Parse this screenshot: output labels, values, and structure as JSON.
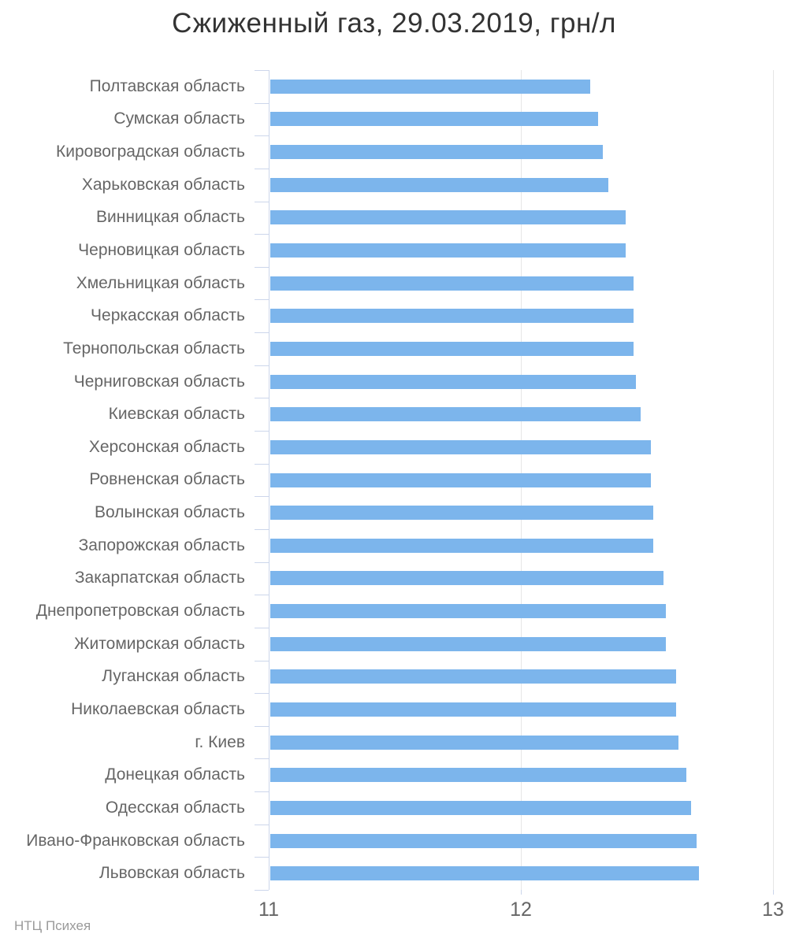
{
  "title": "Сжиженный газ, 29.03.2019, грн/л",
  "footer": {
    "credit": "НТЦ Психея"
  },
  "colors": {
    "bar": "#7cb5ec",
    "title_text": "#333333",
    "label_text": "#666666",
    "gridline": "#e6e6e6",
    "axis_line": "#ccd6eb",
    "credit_text": "#9a9a9a"
  },
  "chart_data": {
    "type": "bar",
    "orientation": "horizontal",
    "title": "Сжиженный газ, 29.03.2019, грн/л",
    "unit": "грн/л",
    "date": "29.03.2019",
    "grid": true,
    "legend": "none",
    "xlim": [
      11,
      13
    ],
    "x_ticks": [
      11,
      12,
      13
    ],
    "categories": [
      "Полтавская область",
      "Сумская область",
      "Кировоградская область",
      "Харьковская область",
      "Винницкая область",
      "Черновицкая область",
      "Хмельницкая область",
      "Черкасская область",
      "Тернопольская область",
      "Черниговская область",
      "Киевская область",
      "Херсонская область",
      "Ровненская область",
      "Волынская область",
      "Запорожская область",
      "Закарпатская область",
      "Днепропетровская область",
      "Житомирская область",
      "Луганская область",
      "Николаевская область",
      "г. Киев",
      "Донецкая область",
      "Одесская область",
      "Ивано-Франковская область",
      "Львовская область"
    ],
    "values": [
      12.27,
      12.3,
      12.32,
      12.34,
      12.41,
      12.41,
      12.44,
      12.44,
      12.44,
      12.45,
      12.47,
      12.51,
      12.51,
      12.52,
      12.52,
      12.56,
      12.57,
      12.57,
      12.61,
      12.61,
      12.62,
      12.65,
      12.67,
      12.69,
      12.7
    ]
  }
}
